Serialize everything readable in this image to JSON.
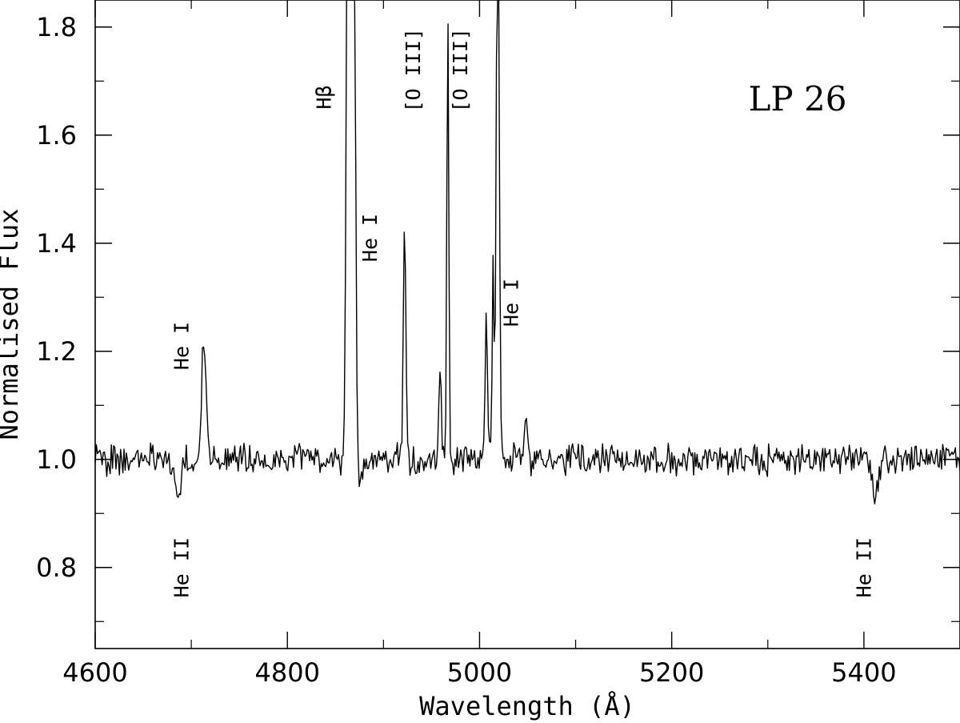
{
  "chart_data": {
    "type": "line",
    "annotation_title": "LP 26",
    "xlabel": "Wavelength (Å)",
    "ylabel": "Normalised Flux",
    "xlim": [
      4600,
      5500
    ],
    "ylim": [
      0.65,
      1.85
    ],
    "x_major_ticks": [
      4600,
      4800,
      5000,
      5200,
      5400
    ],
    "x_minor_ticks": [
      4700,
      4900,
      5100,
      5300,
      5500
    ],
    "y_major_ticks": [
      0.8,
      1.0,
      1.2,
      1.4,
      1.6,
      1.8
    ],
    "y_minor_ticks": [
      0.7,
      0.9,
      1.1,
      1.3,
      1.5,
      1.7
    ],
    "x_tick_labels": [
      "4600",
      "4800",
      "5000",
      "5200",
      "5400"
    ],
    "y_tick_labels": [
      "0.8",
      "1.0",
      "1.2",
      "1.4",
      "1.6",
      "1.8"
    ],
    "grid": false,
    "line_color": "#000000",
    "continuum_level": 1.0,
    "noise_amplitude": 0.022,
    "features": [
      {
        "x": 4686,
        "amp": -0.07,
        "w": 3
      },
      {
        "x": 4713,
        "amp": 0.22,
        "w": 2.2
      },
      {
        "x": 4861,
        "amp": -0.06,
        "w": 3
      },
      {
        "x": 4866,
        "amp": 5.0,
        "w": 2.5
      },
      {
        "x": 4874,
        "amp": -0.05,
        "w": 3
      },
      {
        "x": 4922,
        "amp": 0.45,
        "w": 1.3
      },
      {
        "x": 4959,
        "amp": 0.17,
        "w": 1.2
      },
      {
        "x": 4967,
        "amp": 0.82,
        "w": 1.0
      },
      {
        "x": 5007,
        "amp": 0.26,
        "w": 1.2
      },
      {
        "x": 5014,
        "amp": 0.35,
        "w": 1.0
      },
      {
        "x": 5019,
        "amp": 1.1,
        "w": 1.5
      },
      {
        "x": 5048,
        "amp": 0.07,
        "w": 2
      },
      {
        "x": 5411,
        "amp": -0.07,
        "w": 3
      }
    ],
    "line_labels": [
      {
        "text": "Hβ",
        "x": 4845,
        "y": 1.67,
        "rotate": true
      },
      {
        "text": "He I",
        "x": 4893,
        "y": 1.41,
        "rotate": true
      },
      {
        "text": "[O III]",
        "x": 4938,
        "y": 1.72,
        "rotate": true
      },
      {
        "text": "[O III]",
        "x": 4987,
        "y": 1.72,
        "rotate": true
      },
      {
        "text": "He I",
        "x": 5040,
        "y": 1.29,
        "rotate": true
      },
      {
        "text": "He I",
        "x": 4697,
        "y": 1.21,
        "rotate": true
      },
      {
        "text": "He II",
        "x": 4697,
        "y": 0.8,
        "rotate": true
      },
      {
        "text": "He II",
        "x": 5407,
        "y": 0.8,
        "rotate": true
      }
    ]
  }
}
